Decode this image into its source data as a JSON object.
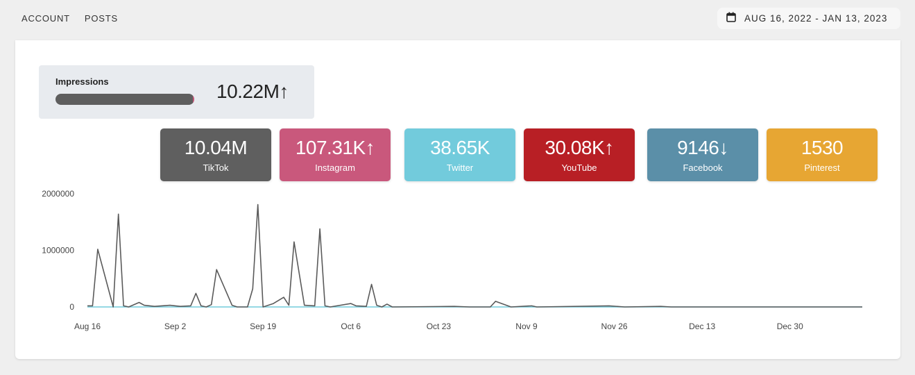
{
  "nav": {
    "items": [
      "ACCOUNT",
      "POSTS"
    ]
  },
  "date_range": {
    "label": "AUG 16, 2022 - JAN 13, 2023"
  },
  "impressions": {
    "label": "Impressions",
    "value": "10.22M",
    "trend": "↑",
    "bar_fill": 1.0,
    "bar_color": "#5e5e5e",
    "bar_tip_color": "#c7567a"
  },
  "platforms": [
    {
      "value": "10.04M",
      "trend": "",
      "name": "TikTok",
      "color": "#5f5f5f"
    },
    {
      "value": "107.31K",
      "trend": "↑",
      "name": "Instagram",
      "color": "#c9587c"
    },
    {
      "value": "38.65K",
      "trend": "",
      "name": "Twitter",
      "color": "#72cbdc"
    },
    {
      "value": "30.08K",
      "trend": "↑",
      "name": "YouTube",
      "color": "#b81f25"
    },
    {
      "value": "9146",
      "trend": "↓",
      "name": "Facebook",
      "color": "#5b8fa8"
    },
    {
      "value": "1530",
      "trend": "",
      "name": "Pinterest",
      "color": "#e7a633"
    }
  ],
  "chart_data": {
    "type": "line",
    "ylim": [
      0,
      2000000
    ],
    "y_ticks": [
      "2000000",
      "1000000",
      "0"
    ],
    "x_ticks": [
      "Aug 16",
      "Sep 2",
      "Sep 19",
      "Oct 6",
      "Oct 23",
      "Nov 9",
      "Nov 26",
      "Dec 13",
      "Dec 30"
    ],
    "x_start": "2022-08-16",
    "x_end": "2023-01-13",
    "series": [
      {
        "color": "#5a5a5a",
        "points": [
          [
            "2022-08-16",
            20000
          ],
          [
            "2022-08-17",
            20000
          ],
          [
            "2022-08-18",
            1020000
          ],
          [
            "2022-08-21",
            0
          ],
          [
            "2022-08-22",
            1640000
          ],
          [
            "2022-08-23",
            20000
          ],
          [
            "2022-08-24",
            0
          ],
          [
            "2022-08-26",
            80000
          ],
          [
            "2022-08-27",
            30000
          ],
          [
            "2022-08-29",
            10000
          ],
          [
            "2022-09-01",
            30000
          ],
          [
            "2022-09-03",
            10000
          ],
          [
            "2022-09-05",
            20000
          ],
          [
            "2022-09-06",
            240000
          ],
          [
            "2022-09-07",
            20000
          ],
          [
            "2022-09-08",
            0
          ],
          [
            "2022-09-09",
            40000
          ],
          [
            "2022-09-10",
            660000
          ],
          [
            "2022-09-13",
            30000
          ],
          [
            "2022-09-14",
            0
          ],
          [
            "2022-09-16",
            0
          ],
          [
            "2022-09-17",
            320000
          ],
          [
            "2022-09-18",
            1810000
          ],
          [
            "2022-09-19",
            0
          ],
          [
            "2022-09-21",
            60000
          ],
          [
            "2022-09-23",
            170000
          ],
          [
            "2022-09-24",
            30000
          ],
          [
            "2022-09-25",
            1150000
          ],
          [
            "2022-09-27",
            30000
          ],
          [
            "2022-09-29",
            20000
          ],
          [
            "2022-09-30",
            1380000
          ],
          [
            "2022-10-01",
            20000
          ],
          [
            "2022-10-02",
            0
          ],
          [
            "2022-10-06",
            60000
          ],
          [
            "2022-10-07",
            20000
          ],
          [
            "2022-10-09",
            10000
          ],
          [
            "2022-10-10",
            400000
          ],
          [
            "2022-10-11",
            30000
          ],
          [
            "2022-10-12",
            0
          ],
          [
            "2022-10-13",
            50000
          ],
          [
            "2022-10-14",
            0
          ],
          [
            "2022-10-26",
            10000
          ],
          [
            "2022-10-29",
            0
          ],
          [
            "2022-11-02",
            0
          ],
          [
            "2022-11-03",
            100000
          ],
          [
            "2022-11-06",
            0
          ],
          [
            "2022-11-10",
            20000
          ],
          [
            "2022-11-11",
            0
          ],
          [
            "2022-11-25",
            20000
          ],
          [
            "2022-11-28",
            0
          ],
          [
            "2022-12-05",
            10000
          ],
          [
            "2022-12-07",
            0
          ],
          [
            "2023-01-13",
            0
          ]
        ]
      },
      {
        "color": "#72cbdc",
        "points": [
          [
            "2022-08-16",
            0
          ],
          [
            "2023-01-13",
            0
          ]
        ]
      }
    ]
  }
}
